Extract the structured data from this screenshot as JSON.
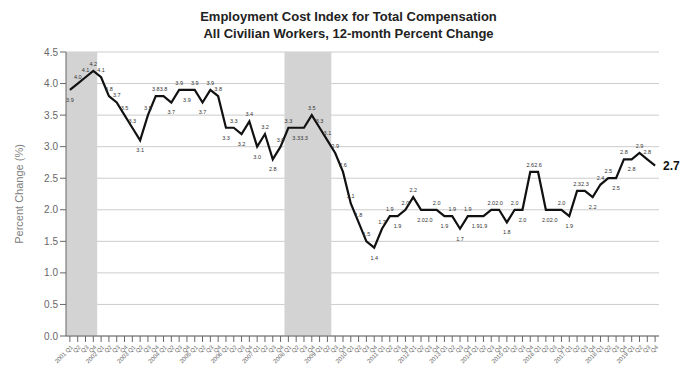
{
  "chart_data": {
    "type": "line",
    "title": "Employment Cost Index for Total Compensation\nAll Civilian Workers, 12-month Percent Change",
    "ylabel": "Percent Change (%)",
    "color": "#111111",
    "grid": true,
    "data_labels": true,
    "ylim": [
      0.0,
      4.5
    ],
    "yticks": [
      {
        "value": 0.0,
        "label": "0.0"
      },
      0.5,
      {
        "value": 1.0,
        "label": "1.0"
      },
      1.5,
      {
        "value": 2.0,
        "label": "2.0"
      },
      2.5,
      {
        "value": 3.0,
        "label": "3.0"
      },
      3.5,
      {
        "value": 4.0,
        "label": "4.0"
      },
      4.5
    ],
    "shaded_regions": [
      {
        "from": 0,
        "to": 3,
        "color": "#d3d3d3"
      },
      {
        "from": 28,
        "to": 33,
        "color": "#d3d3d3"
      }
    ],
    "categories": [
      "2001 Q1",
      "Q2",
      "Q3",
      "Q4",
      "2002 Q1",
      "Q2",
      "Q3",
      "Q4",
      "2003 Q1",
      "Q2",
      "Q3",
      "Q4",
      "2004 Q1",
      "Q2",
      "Q3",
      "Q4",
      "2005 Q1",
      "Q2",
      "Q3",
      "Q4",
      "2006 Q1",
      "Q2",
      "Q3",
      "Q4",
      "2007 Q1",
      "Q2",
      "Q3",
      "Q4",
      "2008 Q1",
      "Q2",
      "Q3",
      "Q4",
      "2009 Q1",
      "Q2",
      "Q3",
      "Q4",
      "2010 Q1",
      "Q2",
      "Q3",
      "Q4",
      "2011 Q1",
      "Q2",
      "Q3",
      "Q4",
      "2012 Q1",
      "Q2",
      "Q3",
      "Q4",
      "2013 Q1",
      "Q2",
      "Q3",
      "Q4",
      "2014 Q1",
      "Q2",
      "Q3",
      "Q4",
      "2015 Q1",
      "Q2",
      "Q3",
      "Q4",
      "2016 Q1",
      "Q2",
      "Q3",
      "Q4",
      "2017 Q1",
      "Q2",
      "Q3",
      "Q4",
      "2018 Q1",
      "Q2",
      "Q3",
      "Q4",
      "2019 Q1",
      "Q2",
      "Q3",
      "Q4"
    ],
    "values": [
      3.9,
      4.0,
      4.1,
      4.2,
      4.1,
      3.8,
      3.7,
      3.5,
      3.3,
      3.1,
      3.5,
      3.8,
      3.8,
      3.7,
      3.9,
      3.9,
      3.9,
      3.7,
      3.9,
      3.8,
      3.3,
      3.3,
      3.2,
      3.4,
      3.0,
      3.2,
      2.8,
      3.0,
      3.3,
      3.3,
      3.3,
      3.5,
      3.3,
      3.1,
      2.9,
      2.6,
      2.1,
      1.8,
      1.5,
      1.4,
      1.7,
      1.9,
      1.9,
      2.0,
      2.2,
      2.0,
      2.0,
      2.0,
      1.9,
      1.9,
      1.7,
      1.9,
      1.9,
      1.9,
      2.0,
      2.0,
      1.8,
      2.0,
      2.0,
      2.6,
      2.6,
      2.0,
      2.0,
      2.0,
      1.9,
      2.3,
      2.3,
      2.2,
      2.4,
      2.5,
      2.5,
      2.8,
      2.8,
      2.9,
      2.8,
      2.7
    ],
    "value_labels": [
      "3.9",
      "4.0",
      "4.1",
      "4.2",
      "4.1",
      "3.8",
      "3.7",
      "3.5",
      "3.3",
      "3.1",
      "3.5",
      "3.8",
      "3.8",
      "3.7",
      "3.9",
      "3.9",
      "3.9",
      "3.7",
      "3.9",
      "3.8",
      "3.3",
      "3.3",
      "3.2",
      "3.4",
      "3.0",
      "3.2",
      "2.8",
      "3.0",
      "3.3",
      "3.3",
      "3.3",
      "3.5",
      "3.3",
      "3.1",
      "2.9",
      "2.6",
      "2.1",
      "1.8",
      "1.5",
      "1.4",
      "1.7",
      "1.9",
      "1.9",
      "2.0",
      "2.2",
      "2.0",
      "2.0",
      "2.0",
      "1.9",
      "1.9",
      "1.7",
      "1.9",
      "1.9",
      "1.9",
      "2.0",
      "2.0",
      "1.8",
      "2.0",
      "2.0",
      "2.6",
      "2.6",
      "2.0",
      "2.0",
      "2.0",
      "1.9",
      "2.3",
      "2.3",
      "2.2",
      "2.4",
      "2.5",
      "2.5",
      "2.8",
      "2.8",
      "2.9",
      "2.8",
      "2.7"
    ]
  }
}
